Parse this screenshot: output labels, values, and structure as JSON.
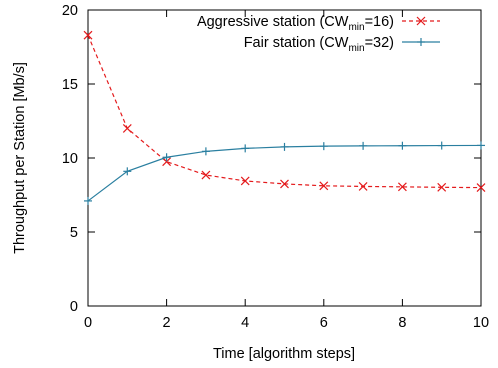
{
  "chart_data": {
    "type": "line",
    "title": "",
    "xlabel": "Time [algorithm steps]",
    "ylabel": "Throughput per Station [Mb/s]",
    "xlim": [
      0,
      10
    ],
    "ylim": [
      0,
      20
    ],
    "xticks": [
      0,
      2,
      4,
      6,
      8,
      10
    ],
    "yticks": [
      0,
      5,
      10,
      15,
      20
    ],
    "grid": false,
    "legend_position": "top-right",
    "series": [
      {
        "name": "Aggressive station (CW",
        "name_sub": "min",
        "name_suffix": "=16)",
        "color": "#e41a1c",
        "marker": "x",
        "line_style": "dashed",
        "x": [
          0,
          1,
          2,
          3,
          4,
          5,
          6,
          7,
          8,
          9,
          10
        ],
        "y": [
          18.3,
          12.0,
          9.75,
          8.85,
          8.45,
          8.25,
          8.12,
          8.08,
          8.05,
          8.02,
          8.0
        ]
      },
      {
        "name": "Fair station (CW",
        "name_sub": "min",
        "name_suffix": "=32)",
        "color": "#2a7fa0",
        "marker": "+",
        "line_style": "solid",
        "x": [
          0,
          1,
          2,
          3,
          4,
          5,
          6,
          7,
          8,
          9,
          10
        ],
        "y": [
          7.1,
          9.1,
          10.05,
          10.45,
          10.65,
          10.75,
          10.8,
          10.82,
          10.83,
          10.84,
          10.85
        ]
      }
    ]
  }
}
